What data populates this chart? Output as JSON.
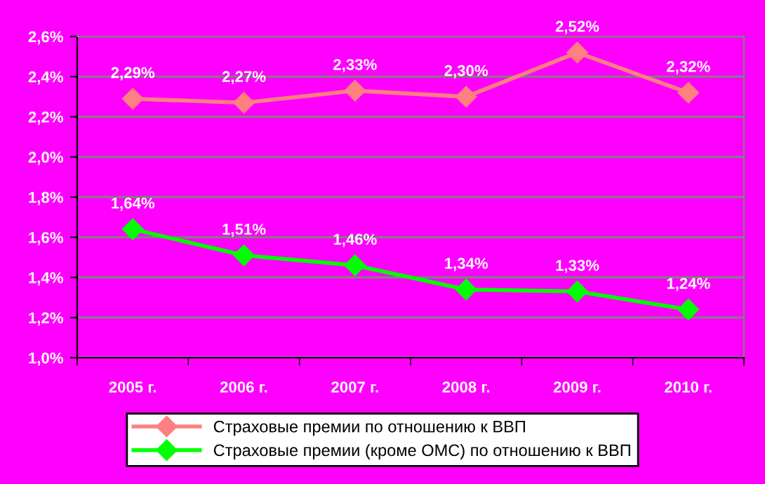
{
  "chart_data": {
    "type": "line",
    "categories": [
      "2005 г.",
      "2006 г.",
      "2007 г.",
      "2008 г.",
      "2009 г.",
      "2010 г."
    ],
    "series": [
      {
        "name": "Страховые премии по отношению к ВВП",
        "color": "#ff8080",
        "values": [
          2.29,
          2.27,
          2.33,
          2.3,
          2.52,
          2.32
        ],
        "value_labels": [
          "2,29%",
          "2,27%",
          "2,33%",
          "2,30%",
          "2,52%",
          "2,32%"
        ]
      },
      {
        "name": "Страховые премии (кроме ОМС) по отношению к ВВП",
        "color": "#00ff00",
        "values": [
          1.64,
          1.51,
          1.46,
          1.34,
          1.33,
          1.24
        ],
        "value_labels": [
          "1,64%",
          "1,51%",
          "1,46%",
          "1,34%",
          "1,33%",
          "1,24%"
        ]
      }
    ],
    "ylim": [
      1.0,
      2.6
    ],
    "yticks": [
      {
        "value": 1.0,
        "label": "1,0%"
      },
      {
        "value": 1.2,
        "label": "1,2%"
      },
      {
        "value": 1.4,
        "label": "1,4%"
      },
      {
        "value": 1.6,
        "label": "1,6%"
      },
      {
        "value": 1.8,
        "label": "1,8%"
      },
      {
        "value": 2.0,
        "label": "2,0%"
      },
      {
        "value": 2.2,
        "label": "2,2%"
      },
      {
        "value": 2.4,
        "label": "2,4%"
      },
      {
        "value": 2.6,
        "label": "2,6%"
      }
    ],
    "grid": "y",
    "legend": "bottom",
    "marker": "diamond",
    "line_style": "solid"
  }
}
